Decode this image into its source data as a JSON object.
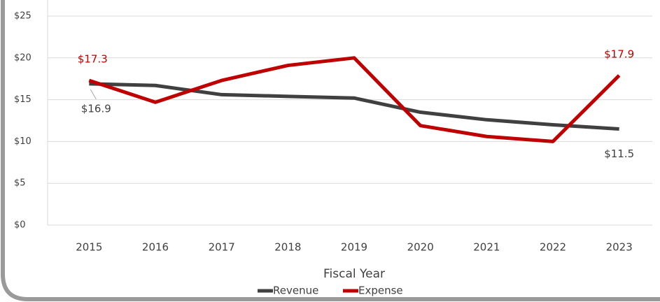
{
  "chart_data": {
    "type": "line",
    "x_label": "Fiscal Year",
    "categories": [
      "2015",
      "2016",
      "2017",
      "2018",
      "2019",
      "2020",
      "2021",
      "2022",
      "2023"
    ],
    "series": [
      {
        "name": "Revenue",
        "color": "#404040",
        "values": [
          16.9,
          16.7,
          15.6,
          15.4,
          15.2,
          13.5,
          12.6,
          12.0,
          11.5
        ],
        "value_labels": [
          "$16.9",
          null,
          null,
          null,
          null,
          null,
          null,
          null,
          "$11.5"
        ]
      },
      {
        "name": "Expense",
        "color": "#c00000",
        "values": [
          17.3,
          14.7,
          17.3,
          19.1,
          20.0,
          11.9,
          10.6,
          10.0,
          17.9
        ],
        "value_labels": [
          "$17.3",
          null,
          null,
          null,
          null,
          null,
          null,
          null,
          "$17.9"
        ]
      }
    ],
    "ylim": [
      0,
      25
    ],
    "yticks": [
      {
        "value": 0,
        "label": "$0"
      },
      {
        "value": 5,
        "label": "$5"
      },
      {
        "value": 10,
        "label": "$10"
      },
      {
        "value": 15,
        "label": "$15"
      },
      {
        "value": 20,
        "label": "$20"
      },
      {
        "value": 25,
        "label": "$25"
      }
    ],
    "grid": true,
    "legend": "bottom"
  }
}
